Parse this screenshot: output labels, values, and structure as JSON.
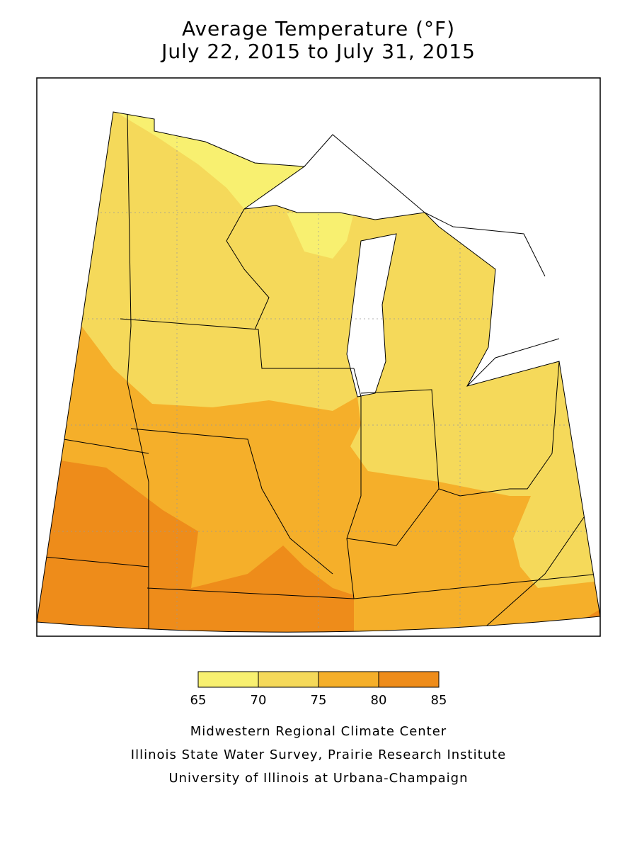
{
  "title": [
    "Average Temperature (°F)",
    "July 22, 2015 to July 31, 2015"
  ],
  "legend": {
    "ticks": [
      65,
      70,
      75,
      80,
      85
    ],
    "colors": [
      "#f8f070",
      "#f5d95a",
      "#f5af2a",
      "#ee8c1a"
    ]
  },
  "credits": [
    "Midwestern Regional Climate Center",
    "Illinois State Water Survey, Prairie Research Institute",
    "University of Illinois at Urbana-Champaign"
  ]
}
